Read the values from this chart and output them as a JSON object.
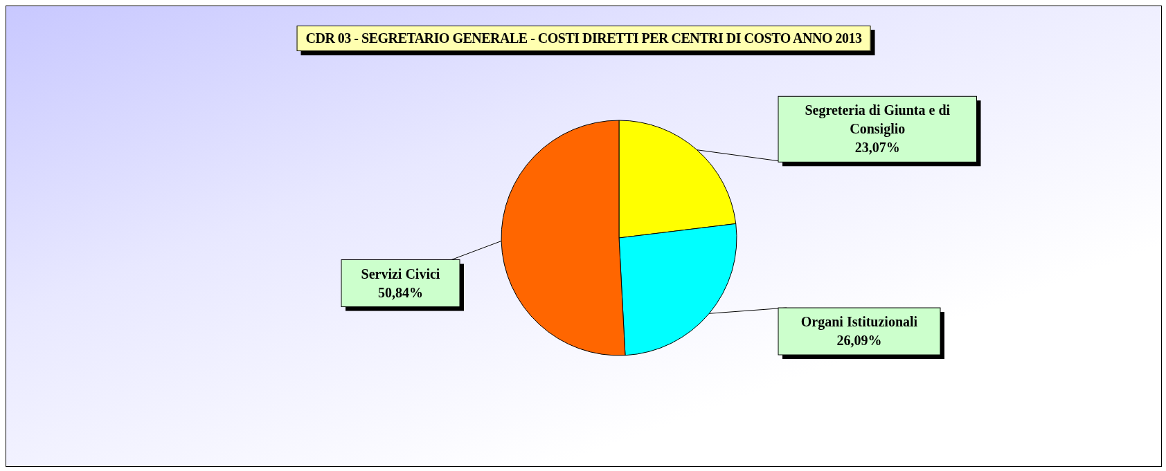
{
  "chart_data": {
    "type": "pie",
    "title": "CDR 03 - SEGRETARIO GENERALE - COSTI DIRETTI PER CENTRI DI COSTO ANNO 2013",
    "categories": [
      "Segreteria di Giunta e di Consiglio",
      "Organi Istituzionali",
      "Servizi Civici"
    ],
    "values": [
      23.07,
      26.09,
      50.84
    ],
    "colors": [
      "#ffff00",
      "#00ffff",
      "#ff6600"
    ],
    "value_labels": [
      "23,07%",
      "26,09%",
      "50,84%"
    ],
    "legend": false
  }
}
